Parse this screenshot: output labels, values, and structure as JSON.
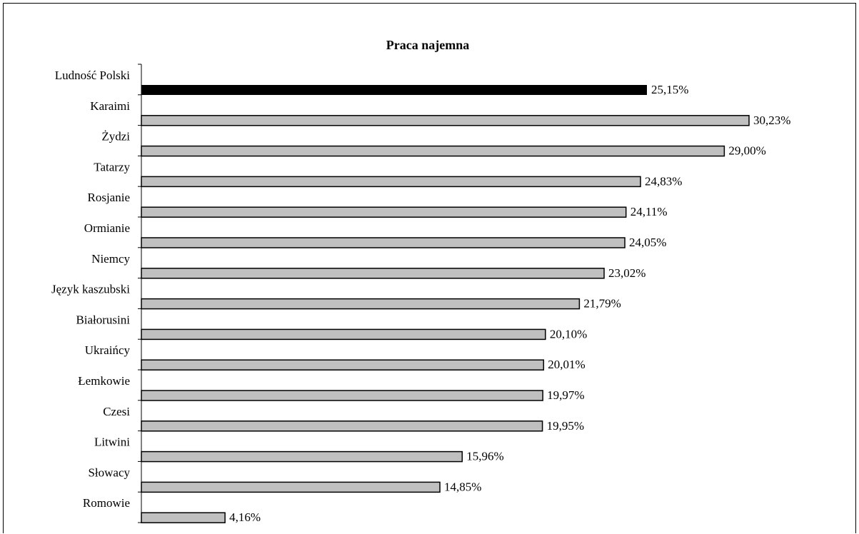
{
  "chart_data": {
    "type": "bar",
    "orientation": "horizontal",
    "title": "Praca najemna",
    "categories": [
      "Ludność Polski",
      "Karaimi",
      "Żydzi",
      "Tatarzy",
      "Rosjanie",
      "Ormianie",
      "Niemcy",
      "Język kaszubski",
      "Białorusini",
      "Ukraińcy",
      "Łemkowie",
      "Czesi",
      "Litwini",
      "Słowacy",
      "Romowie"
    ],
    "values": [
      25.15,
      30.23,
      29.0,
      24.83,
      24.11,
      24.05,
      23.02,
      21.79,
      20.1,
      20.01,
      19.97,
      19.95,
      15.96,
      14.85,
      4.16
    ],
    "value_labels": [
      "25,15%",
      "30,23%",
      "29,00%",
      "24,83%",
      "24,11%",
      "24,05%",
      "23,02%",
      "21,79%",
      "20,10%",
      "20,01%",
      "19,97%",
      "19,95%",
      "15,96%",
      "14,85%",
      "4,16%"
    ],
    "xlabel": "",
    "ylabel": "",
    "xlim": [
      0,
      31
    ],
    "grid": false,
    "legend": "none",
    "colors": {
      "highlight": "#000000",
      "default": "#c0c0c0",
      "outline": "#000000"
    }
  }
}
